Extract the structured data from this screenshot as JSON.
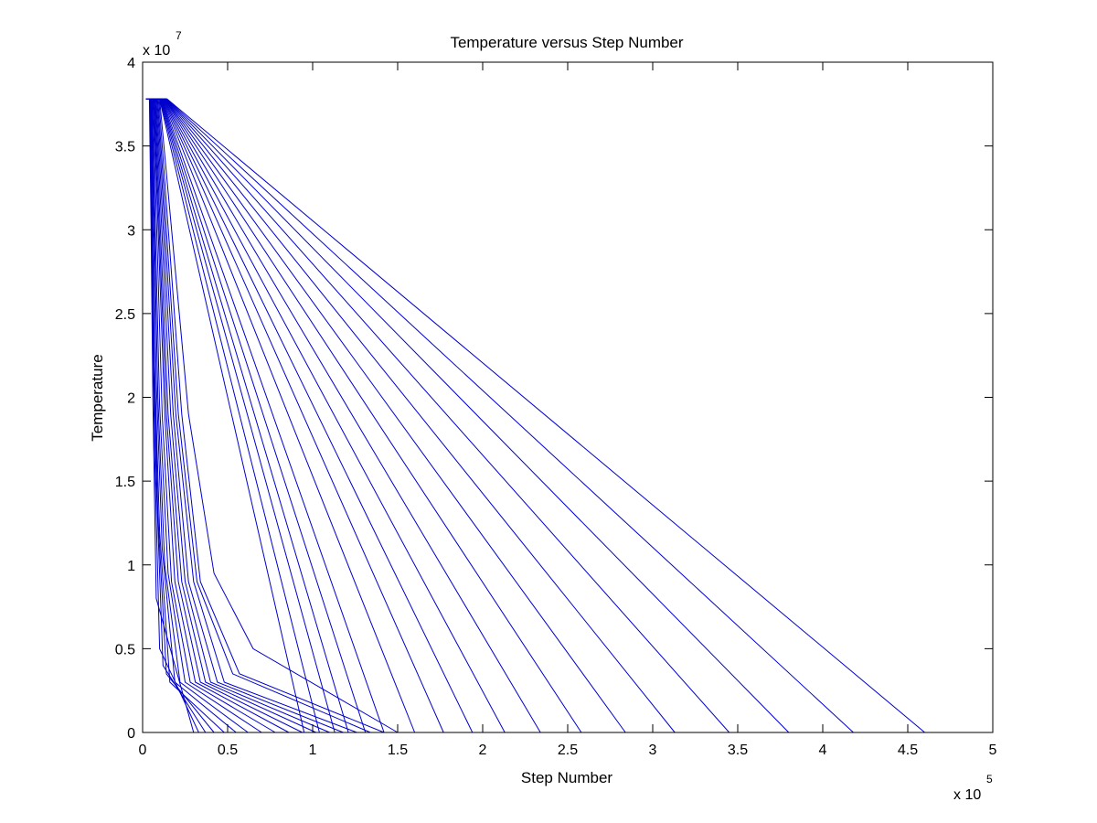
{
  "chart_data": {
    "type": "line",
    "title": "Temperature versus Step Number",
    "xlabel": "Step Number",
    "ylabel": "Temperature",
    "x_multiplier": {
      "base": "x 10",
      "exponent": "5"
    },
    "y_multiplier": {
      "base": "x 10",
      "exponent": "7"
    },
    "xlim": [
      0,
      500000
    ],
    "ylim": [
      0,
      40000000
    ],
    "x_ticks": [
      0,
      50000,
      100000,
      150000,
      200000,
      250000,
      300000,
      350000,
      400000,
      450000,
      500000
    ],
    "x_tick_labels": [
      "0",
      "0.5",
      "1",
      "1.5",
      "2",
      "2.5",
      "3",
      "3.5",
      "4",
      "4.5",
      "5"
    ],
    "y_ticks": [
      0,
      5000000,
      10000000,
      15000000,
      20000000,
      25000000,
      30000000,
      35000000,
      40000000
    ],
    "y_tick_labels": [
      "0",
      "0.5",
      "1",
      "1.5",
      "2",
      "2.5",
      "3",
      "3.5",
      "4"
    ],
    "grid": false,
    "line_color": "#0000cc",
    "series": [
      {
        "x": [
          2000,
          4000,
          5000,
          6000,
          8000,
          30000
        ],
        "y": [
          37800000,
          37800000,
          30000000,
          20000000,
          8000000,
          0
        ]
      },
      {
        "x": [
          2000,
          4200,
          5500,
          7000,
          10000,
          33000
        ],
        "y": [
          37800000,
          37800000,
          28000000,
          17000000,
          5000000,
          0
        ]
      },
      {
        "x": [
          2000,
          4400,
          6000,
          8000,
          12000,
          37000
        ],
        "y": [
          37800000,
          37800000,
          26000000,
          15000000,
          4000000,
          0
        ]
      },
      {
        "x": [
          2000,
          4600,
          6500,
          9000,
          14000,
          42000
        ],
        "y": [
          37800000,
          37800000,
          24000000,
          13000000,
          3500000,
          0
        ]
      },
      {
        "x": [
          2000,
          4800,
          7000,
          10000,
          16000,
          48000
        ],
        "y": [
          37800000,
          37800000,
          22000000,
          12000000,
          3000000,
          0
        ]
      },
      {
        "x": [
          2000,
          5000,
          8000,
          11500,
          19000,
          55000
        ],
        "y": [
          37800000,
          37800000,
          21000000,
          11000000,
          3000000,
          0
        ]
      },
      {
        "x": [
          2000,
          5300,
          9000,
          13000,
          22000,
          62000
        ],
        "y": [
          37800000,
          37800000,
          20000000,
          10000000,
          3000000,
          0
        ]
      },
      {
        "x": [
          2000,
          5600,
          10000,
          15000,
          25000,
          70000
        ],
        "y": [
          37800000,
          37800000,
          19500000,
          9500000,
          3000000,
          0
        ]
      },
      {
        "x": [
          2000,
          6000,
          11500,
          17000,
          28000,
          78000
        ],
        "y": [
          37800000,
          37800000,
          19000000,
          9000000,
          3000000,
          0
        ]
      },
      {
        "x": [
          2000,
          6400,
          13000,
          19000,
          31000,
          86000
        ],
        "y": [
          37800000,
          37800000,
          19000000,
          9000000,
          3000000,
          0
        ]
      },
      {
        "x": [
          2000,
          6800,
          14000,
          21000,
          34000,
          94000
        ],
        "y": [
          37800000,
          37800000,
          19000000,
          9000000,
          3000000,
          0
        ]
      },
      {
        "x": [
          2000,
          7200,
          15000,
          23000,
          37000,
          102000
        ],
        "y": [
          37800000,
          37800000,
          19000000,
          9000000,
          3000000,
          0
        ]
      },
      {
        "x": [
          2000,
          7600,
          16500,
          25000,
          40000,
          110000
        ],
        "y": [
          37800000,
          37800000,
          19000000,
          9000000,
          3000000,
          0
        ]
      },
      {
        "x": [
          2000,
          8000,
          18000,
          27000,
          44000,
          118000
        ],
        "y": [
          37800000,
          37800000,
          19000000,
          9000000,
          3000000,
          0
        ]
      },
      {
        "x": [
          2000,
          8500,
          19500,
          30000,
          48000,
          126000
        ],
        "y": [
          37800000,
          37800000,
          19000000,
          9000000,
          3000000,
          0
        ]
      },
      {
        "x": [
          2000,
          9000,
          21000,
          32000,
          53000,
          134000
        ],
        "y": [
          37800000,
          37800000,
          19000000,
          9000000,
          3500000,
          0
        ]
      },
      {
        "x": [
          2000,
          9500,
          23000,
          34000,
          57000,
          142000
        ],
        "y": [
          37800000,
          37800000,
          19000000,
          9000000,
          3500000,
          0
        ]
      },
      {
        "x": [
          2000,
          10000,
          27000,
          42000,
          65000,
          150000
        ],
        "y": [
          37800000,
          37800000,
          19000000,
          9500000,
          5000000,
          0
        ]
      },
      {
        "x": [
          3000,
          10000,
          95000
        ],
        "y": [
          37800000,
          37800000,
          0
        ]
      },
      {
        "x": [
          3000,
          10300,
          104000
        ],
        "y": [
          37800000,
          37800000,
          0
        ]
      },
      {
        "x": [
          3000,
          10600,
          113000
        ],
        "y": [
          37800000,
          37800000,
          0
        ]
      },
      {
        "x": [
          3000,
          10900,
          121000
        ],
        "y": [
          37800000,
          37800000,
          0
        ]
      },
      {
        "x": [
          3000,
          11200,
          131000
        ],
        "y": [
          37800000,
          37800000,
          0
        ]
      },
      {
        "x": [
          3000,
          11500,
          142000
        ],
        "y": [
          37800000,
          37800000,
          0
        ]
      },
      {
        "x": [
          3000,
          11800,
          160000
        ],
        "y": [
          37800000,
          37800000,
          0
        ]
      },
      {
        "x": [
          3000,
          12100,
          177000
        ],
        "y": [
          37800000,
          37800000,
          0
        ]
      },
      {
        "x": [
          3000,
          12400,
          194000
        ],
        "y": [
          37800000,
          37800000,
          0
        ]
      },
      {
        "x": [
          3000,
          12700,
          213000
        ],
        "y": [
          37800000,
          37800000,
          0
        ]
      },
      {
        "x": [
          3000,
          13000,
          234000
        ],
        "y": [
          37800000,
          37800000,
          0
        ]
      },
      {
        "x": [
          3000,
          13200,
          258000
        ],
        "y": [
          37800000,
          37800000,
          0
        ]
      },
      {
        "x": [
          3000,
          13400,
          284000
        ],
        "y": [
          37800000,
          37800000,
          0
        ]
      },
      {
        "x": [
          3000,
          13600,
          313000
        ],
        "y": [
          37800000,
          37800000,
          0
        ]
      },
      {
        "x": [
          3000,
          13800,
          345000
        ],
        "y": [
          37800000,
          37800000,
          0
        ]
      },
      {
        "x": [
          3000,
          14000,
          380000
        ],
        "y": [
          37800000,
          37800000,
          0
        ]
      },
      {
        "x": [
          3000,
          14200,
          418000
        ],
        "y": [
          37800000,
          37800000,
          0
        ]
      },
      {
        "x": [
          3000,
          14400,
          460000
        ],
        "y": [
          37800000,
          37800000,
          0
        ]
      }
    ]
  }
}
